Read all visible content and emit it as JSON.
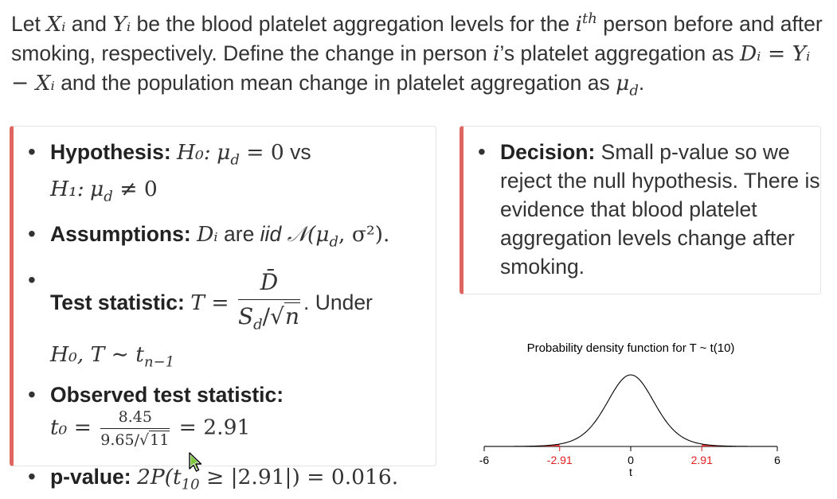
{
  "intro": {
    "t1": "Let ",
    "X_i": "Xᵢ",
    "t2": " and ",
    "Y_i": "Yᵢ",
    "t3": " be the blood platelet aggregation levels for the ",
    "i_th_base": "i",
    "i_th_sup": "th",
    "t4": " person before and after smoking, respectively. Define the change in person ",
    "i_possessive": "i",
    "t5": "’s platelet aggregation as ",
    "d_def": "Dᵢ = Yᵢ − Xᵢ",
    "t6": " and the population mean change in platelet aggregation as ",
    "mu_d": "μ",
    "mu_d_sub": "d",
    "t7": "."
  },
  "left_box": {
    "hypothesis_label": "Hypothesis:",
    "h0": "H₀:",
    "h0_expr": "μ",
    "h0_sub": "d",
    "h0_rest": " = 0",
    "vs": " vs",
    "h1": "H₁:",
    "h1_expr": "μ",
    "h1_sub": "d",
    "h1_rest": " ≠ 0",
    "assumptions_label": "Assumptions:",
    "assump_var": "Dᵢ",
    "assump_are": " are ",
    "assump_iid": "iid",
    "assump_dist": "𝒩(μ",
    "assump_dist_sub": "d",
    "assump_dist_rest": ", σ²).",
    "test_stat_label": "Test statistic:",
    "T_eq": "T =",
    "frac_num": "D̄",
    "frac_den_pre": "S",
    "frac_den_sub": "d",
    "frac_den_slash": "/√",
    "frac_den_n": "n",
    "under": ". Under",
    "null_dist": "H₀, T ∼ t",
    "null_dist_sub": "n−1",
    "observed_label": "Observed test statistic:",
    "t0": "t₀ =",
    "obs_num": "8.45",
    "obs_den_pre": "9.65/√",
    "obs_den_n": "11",
    "obs_result": "= 2.91",
    "pvalue_label": "p-value:",
    "pvalue_expr": "2P(t",
    "pvalue_sub": "10",
    "pvalue_rest": " ≥ |2.91|) = 0.016."
  },
  "right_box": {
    "decision_label": "Decision:",
    "decision_text": " Small p-value so we reject the null hypothesis. There is evidence that blood platelet aggregation levels change after smoking."
  },
  "chart_data": {
    "type": "line",
    "title": "Probability density function for T ~ t(10)",
    "xlabel": "t",
    "ylabel": "",
    "xlim": [
      -6,
      6
    ],
    "distribution": "student-t",
    "df": 10,
    "ticks": [
      {
        "value": -6,
        "label": "-6",
        "highlight": false
      },
      {
        "value": -2.91,
        "label": "-2.91",
        "highlight": true
      },
      {
        "value": 0,
        "label": "0",
        "highlight": false
      },
      {
        "value": 2.91,
        "label": "2.91",
        "highlight": true
      },
      {
        "value": 6,
        "label": "6",
        "highlight": false
      }
    ],
    "shaded_tails": [
      [
        -6,
        -2.91
      ],
      [
        2.91,
        6
      ]
    ],
    "curve_color": "#000000",
    "tail_color": "#e02020"
  },
  "colors": {
    "callout_border": "#df6560",
    "highlight_red": "#e02020"
  }
}
